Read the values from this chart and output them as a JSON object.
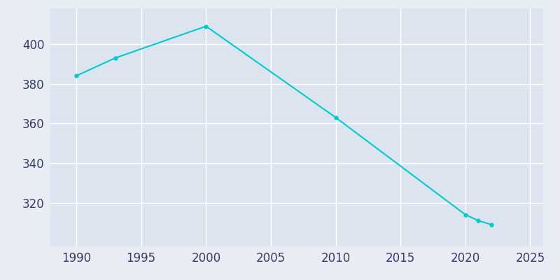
{
  "years": [
    1990,
    1993,
    2000,
    2010,
    2020,
    2021,
    2022
  ],
  "population": [
    384,
    393,
    409,
    363,
    314,
    311,
    309
  ],
  "line_color": "#00CCCC",
  "marker": "o",
  "marker_size": 3.5,
  "bg_color": "#e8edf4",
  "plot_bg_color": "#dce4f0",
  "xlim": [
    1988,
    2026
  ],
  "ylim": [
    298,
    418
  ],
  "xticks": [
    1990,
    1995,
    2000,
    2005,
    2010,
    2015,
    2020,
    2025
  ],
  "yticks": [
    320,
    340,
    360,
    380,
    400
  ],
  "grid_color": "#ffffff",
  "tick_label_color": "#3a3a6a",
  "tick_fontsize": 12,
  "linewidth": 1.5
}
